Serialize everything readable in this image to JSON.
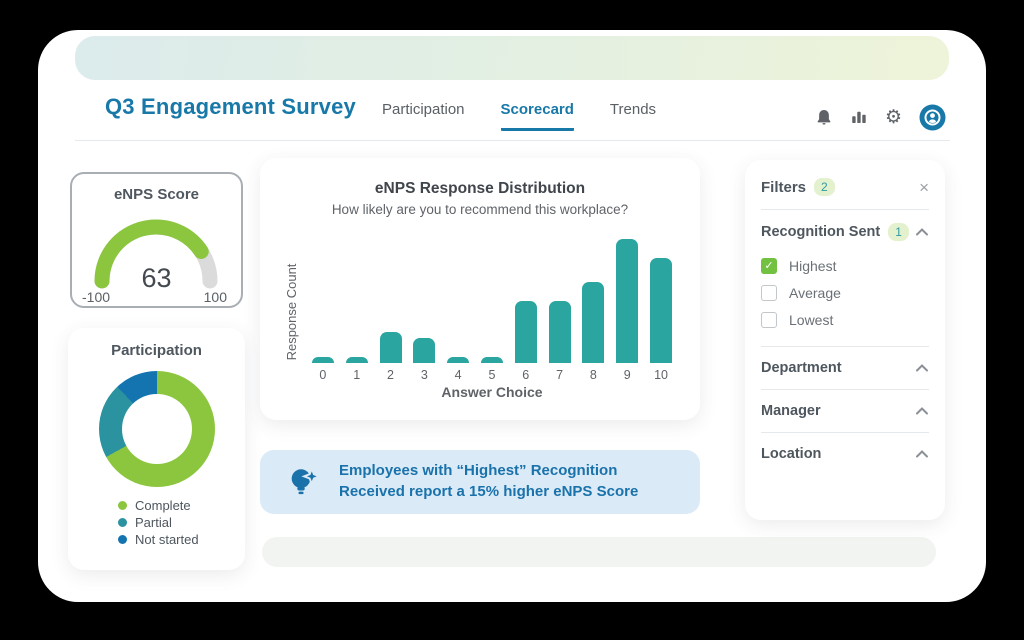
{
  "header": {
    "title": "Q3 Engagement Survey",
    "tabs": [
      {
        "label": "Participation",
        "active": false
      },
      {
        "label": "Scorecard",
        "active": true
      },
      {
        "label": "Trends",
        "active": false
      }
    ],
    "accent_color": "#1878a8"
  },
  "gauge": {
    "title": "eNPS Score",
    "value": 63,
    "min": -100,
    "max": 100,
    "min_label": "-100",
    "max_label": "100",
    "fill_color": "#8cc63f",
    "track_color": "#dbdbdb"
  },
  "participation": {
    "title": "Participation",
    "segments": [
      {
        "label": "Complete",
        "percent": 67,
        "color": "#8cc63f"
      },
      {
        "label": "Partial",
        "percent": 21,
        "color": "#2b93a0"
      },
      {
        "label": "Not started",
        "percent": 12,
        "color": "#1474b0"
      }
    ]
  },
  "chart_data": {
    "type": "bar",
    "title": "eNPS Response Distribution",
    "subtitle": "How likely are you to recommend this workplace?",
    "xlabel": "Answer Choice",
    "ylabel": "Response Count",
    "categories": [
      "0",
      "1",
      "2",
      "3",
      "4",
      "5",
      "6",
      "7",
      "8",
      "9",
      "10"
    ],
    "values": [
      1,
      1,
      5,
      4,
      1,
      1,
      10,
      10,
      13,
      20,
      17
    ],
    "ylim": [
      0,
      20
    ],
    "bar_color": "#2aa5a0",
    "grid": false,
    "legend": "none"
  },
  "insight": {
    "line1": "Employees with “Highest” Recognition",
    "line2": "Received report a 15% higher eNPS Score"
  },
  "filters": {
    "title": "Filters",
    "count_badge": "2",
    "close_label": "×",
    "sections": [
      {
        "label": "Recognition Sent",
        "badge": "1",
        "expanded": true,
        "options": [
          {
            "label": "Highest",
            "checked": true
          },
          {
            "label": "Average",
            "checked": false
          },
          {
            "label": "Lowest",
            "checked": false
          }
        ]
      },
      {
        "label": "Department"
      },
      {
        "label": "Manager"
      },
      {
        "label": "Location"
      }
    ]
  }
}
